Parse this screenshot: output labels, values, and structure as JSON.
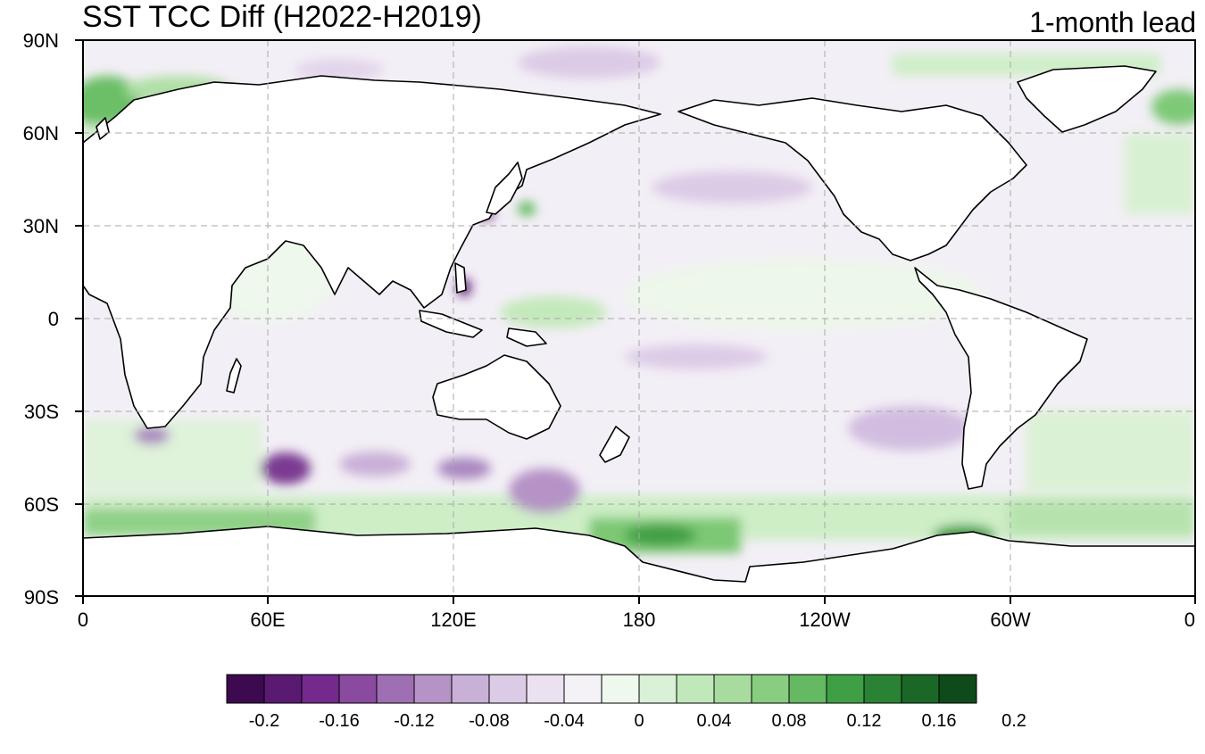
{
  "title": "SST TCC Diff (H2022-H2019)",
  "lead": "1-month lead",
  "lat_labels": [
    "90N",
    "60N",
    "30N",
    "0",
    "30S",
    "60S",
    "90S"
  ],
  "lon_labels": [
    "0",
    "60E",
    "120E",
    "180",
    "120W",
    "60W",
    "0"
  ],
  "colorbar": {
    "colors": [
      "#3d0a4f",
      "#5b1a72",
      "#742a8c",
      "#8a4aa0",
      "#9f6fb3",
      "#b593c6",
      "#c9b0d7",
      "#dccbe6",
      "#ebe1f0",
      "#f5f2f7",
      "#eef8ec",
      "#d9f1d6",
      "#c1e8bb",
      "#a8dc9f",
      "#88cd80",
      "#64b962",
      "#3f9f45",
      "#2a8234",
      "#1b6726",
      "#0f4a1a"
    ],
    "tick_labels": [
      "-0.2",
      "-0.16",
      "-0.12",
      "-0.08",
      "-0.04",
      "0",
      "0.04",
      "0.08",
      "0.12",
      "0.16",
      "0.2"
    ]
  }
}
